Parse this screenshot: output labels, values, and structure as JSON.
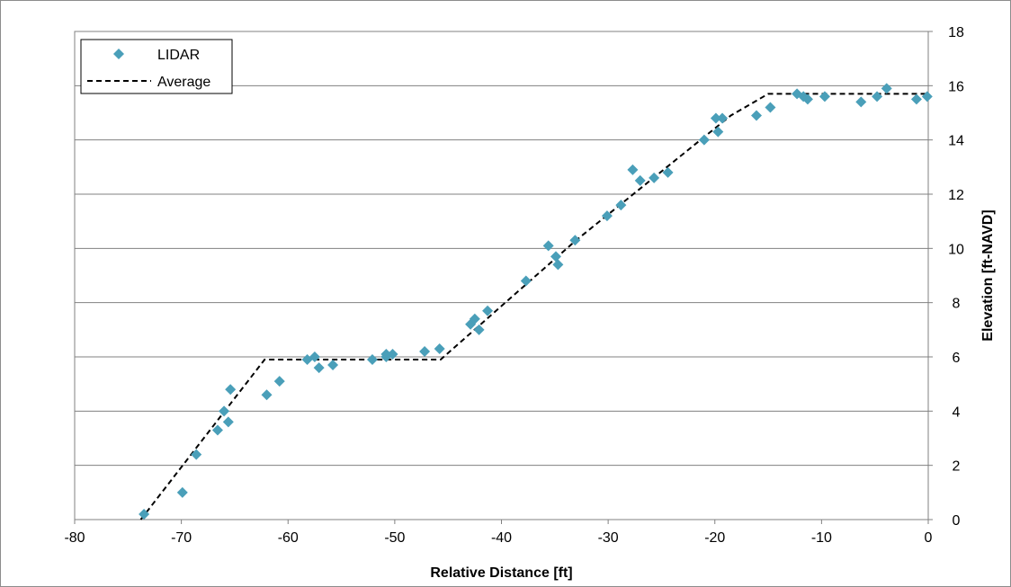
{
  "chart_data": {
    "type": "scatter",
    "xlabel": "Relative Distance [ft]",
    "ylabel": "Elevation [ft-NAVD]",
    "xlim": [
      -80,
      0
    ],
    "ylim": [
      0,
      18
    ],
    "x_ticks": [
      "-80",
      "-70",
      "-60",
      "-50",
      "-40",
      "-30",
      "-20",
      "-10",
      "0"
    ],
    "y_ticks": [
      "0",
      "2",
      "4",
      "6",
      "8",
      "10",
      "12",
      "14",
      "16",
      "18"
    ],
    "y_axis_position": "right",
    "grid": "horizontal",
    "legend_position": "top-left",
    "series": [
      {
        "name": "LIDAR",
        "kind": "scatter",
        "marker": "diamond",
        "color": "#4a9fb9",
        "points": [
          [
            -73.5,
            0.2
          ],
          [
            -69.9,
            1.0
          ],
          [
            -68.6,
            2.4
          ],
          [
            -66.6,
            3.3
          ],
          [
            -66.0,
            4.0
          ],
          [
            -65.6,
            3.6
          ],
          [
            -65.4,
            4.8
          ],
          [
            -62.0,
            4.6
          ],
          [
            -60.8,
            5.1
          ],
          [
            -58.2,
            5.9
          ],
          [
            -57.5,
            6.0
          ],
          [
            -57.1,
            5.6
          ],
          [
            -55.8,
            5.7
          ],
          [
            -52.1,
            5.9
          ],
          [
            -50.8,
            6.1
          ],
          [
            -50.8,
            6.0
          ],
          [
            -50.2,
            6.1
          ],
          [
            -47.2,
            6.2
          ],
          [
            -45.8,
            6.3
          ],
          [
            -42.9,
            7.2
          ],
          [
            -42.5,
            7.4
          ],
          [
            -42.1,
            7.0
          ],
          [
            -41.3,
            7.7
          ],
          [
            -37.7,
            8.8
          ],
          [
            -35.6,
            10.1
          ],
          [
            -34.9,
            9.7
          ],
          [
            -34.7,
            9.4
          ],
          [
            -33.1,
            10.3
          ],
          [
            -30.1,
            11.2
          ],
          [
            -28.8,
            11.6
          ],
          [
            -27.7,
            12.9
          ],
          [
            -27.0,
            12.5
          ],
          [
            -25.7,
            12.6
          ],
          [
            -24.4,
            12.8
          ],
          [
            -21.0,
            14.0
          ],
          [
            -19.9,
            14.8
          ],
          [
            -19.7,
            14.3
          ],
          [
            -19.3,
            14.8
          ],
          [
            -16.1,
            14.9
          ],
          [
            -14.8,
            15.2
          ],
          [
            -12.3,
            15.7
          ],
          [
            -11.7,
            15.6
          ],
          [
            -11.3,
            15.5
          ],
          [
            -9.7,
            15.6
          ],
          [
            -6.3,
            15.4
          ],
          [
            -4.8,
            15.6
          ],
          [
            -3.9,
            15.9
          ],
          [
            -1.1,
            15.5
          ],
          [
            -0.1,
            15.6
          ]
        ]
      },
      {
        "name": "Average",
        "kind": "line",
        "style": "dashed",
        "color": "#000000",
        "points": [
          [
            -73.8,
            0.0
          ],
          [
            -62.2,
            5.9
          ],
          [
            -45.7,
            5.9
          ],
          [
            -33.0,
            10.3
          ],
          [
            -18.5,
            14.9
          ],
          [
            -15.0,
            15.7
          ],
          [
            0.0,
            15.7
          ]
        ]
      }
    ]
  }
}
